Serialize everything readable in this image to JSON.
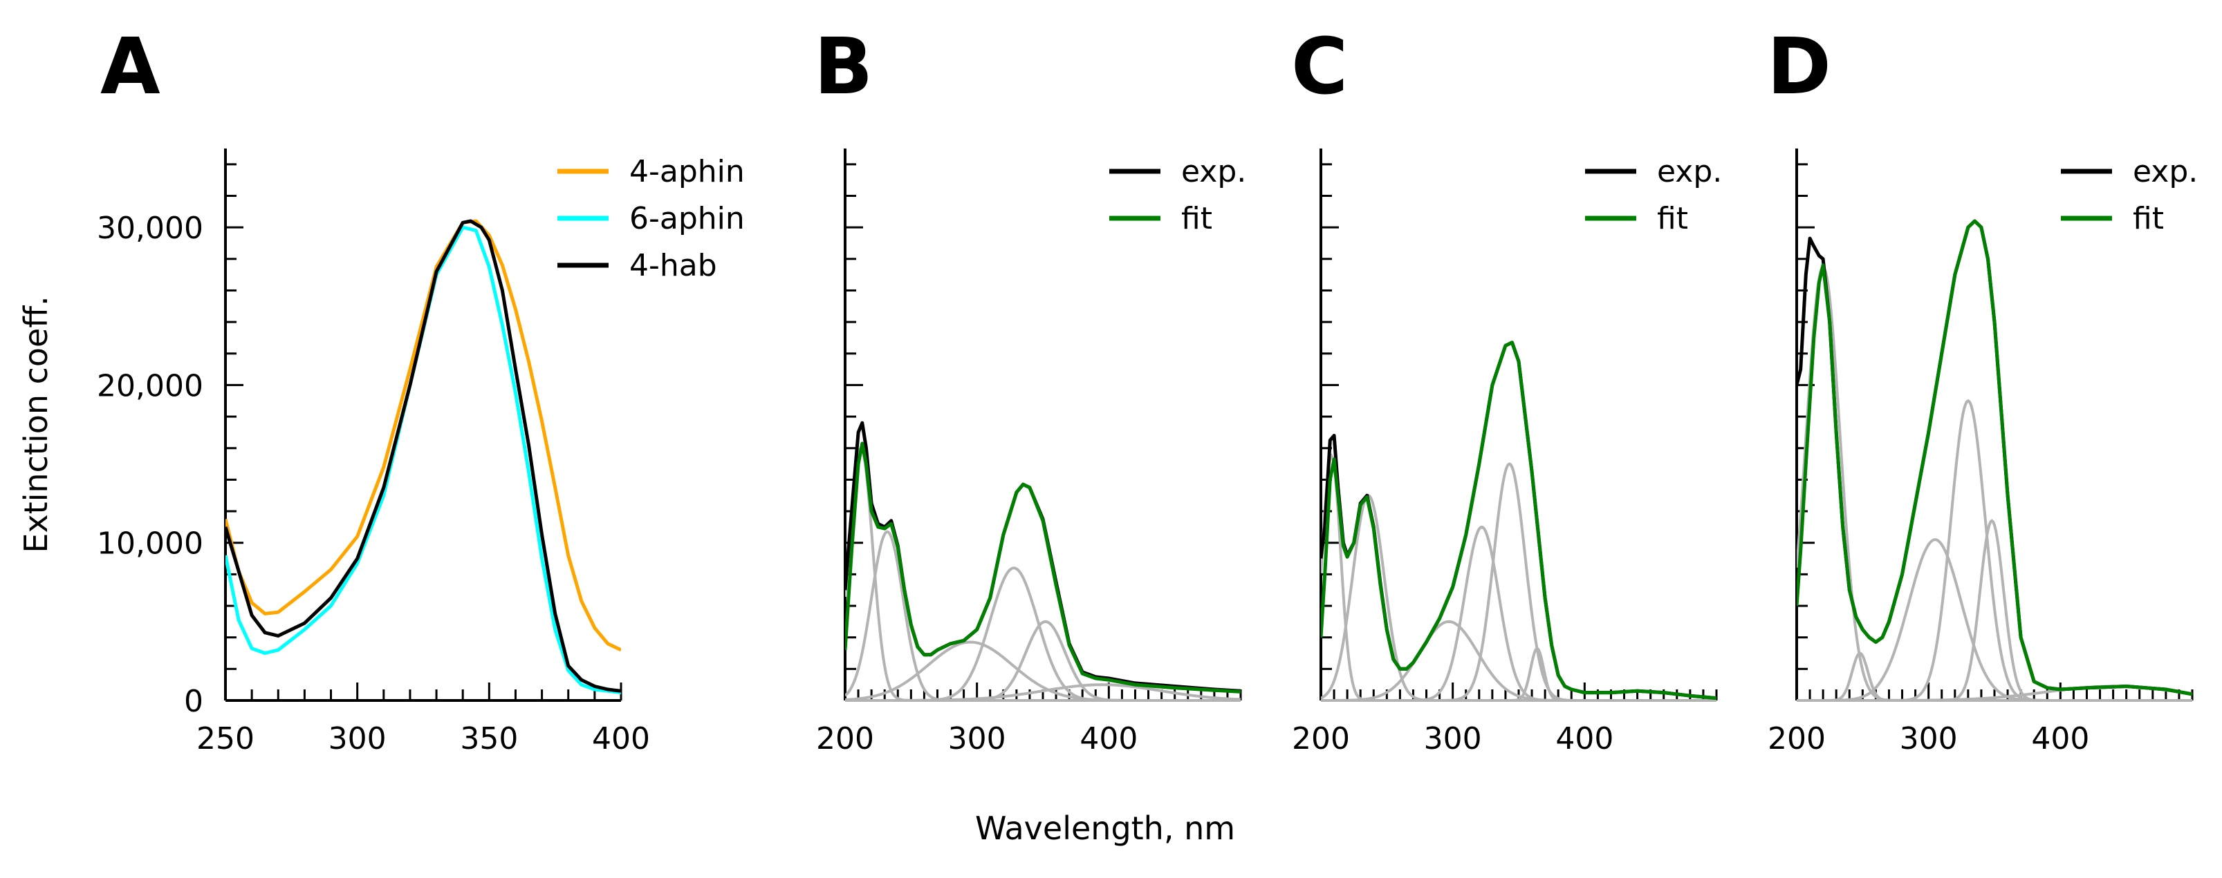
{
  "figure": {
    "shared_xlabel": "Wavelength, nm"
  },
  "chart_data": [
    {
      "panel": "A",
      "type": "line",
      "xlabel": "",
      "ylabel": "Extinction coeff.",
      "xlim": [
        250,
        400
      ],
      "ylim": [
        0,
        35000
      ],
      "xticks": [
        250,
        300,
        350,
        400
      ],
      "yticks": [
        0,
        10000,
        20000,
        30000
      ],
      "ytick_labels": [
        "0",
        "10,000",
        "20,000",
        "30,000"
      ],
      "legend": "top-right",
      "series": [
        {
          "name": "4-aphin",
          "color": "#FFA500",
          "x": [
            250,
            255,
            260,
            265,
            270,
            280,
            290,
            300,
            310,
            320,
            330,
            340,
            345,
            350,
            355,
            360,
            365,
            370,
            375,
            380,
            385,
            390,
            395,
            400
          ],
          "y": [
            11500,
            8200,
            6200,
            5500,
            5600,
            6900,
            8300,
            10400,
            14800,
            21000,
            27500,
            30300,
            30400,
            29500,
            27600,
            24800,
            21500,
            17700,
            13500,
            9200,
            6300,
            4600,
            3600,
            3200
          ]
        },
        {
          "name": "6-aphin",
          "color": "#00FFFF",
          "x": [
            250,
            255,
            260,
            265,
            270,
            280,
            290,
            300,
            310,
            320,
            330,
            340,
            345,
            350,
            355,
            360,
            365,
            370,
            375,
            380,
            385,
            390,
            395,
            400
          ],
          "y": [
            9200,
            5100,
            3300,
            3000,
            3200,
            4500,
            6000,
            8700,
            13000,
            20000,
            27000,
            30000,
            29800,
            27500,
            23800,
            19500,
            14500,
            9000,
            4500,
            1900,
            1000,
            700,
            600,
            500
          ]
        },
        {
          "name": "4-hab",
          "color": "#000000",
          "x": [
            250,
            255,
            260,
            265,
            270,
            280,
            290,
            300,
            310,
            320,
            330,
            340,
            343,
            347,
            350,
            355,
            360,
            365,
            370,
            375,
            380,
            385,
            390,
            395,
            400
          ],
          "y": [
            11000,
            8200,
            5400,
            4300,
            4100,
            4900,
            6500,
            9000,
            13500,
            20000,
            27200,
            30300,
            30400,
            30000,
            29200,
            26000,
            21000,
            16200,
            10500,
            5500,
            2200,
            1300,
            900,
            700,
            600
          ]
        }
      ]
    },
    {
      "panel": "B",
      "type": "line",
      "xlim": [
        200,
        500
      ],
      "ylim": [
        0,
        35000
      ],
      "xticks": [
        200,
        300,
        400
      ],
      "legend": "top-right",
      "series": [
        {
          "name": "exp.",
          "color": "#000000",
          "x": [
            200,
            205,
            210,
            213,
            216,
            220,
            225,
            230,
            235,
            240,
            245,
            250,
            255,
            260,
            265,
            270,
            280,
            290,
            300,
            310,
            320,
            330,
            335,
            340,
            350,
            360,
            370,
            380,
            390,
            400,
            420,
            450,
            480,
            500
          ],
          "y": [
            7000,
            12000,
            17000,
            17600,
            16000,
            12500,
            11200,
            11000,
            11400,
            9800,
            7000,
            4800,
            3400,
            2900,
            2900,
            3200,
            3600,
            3800,
            4500,
            6500,
            10500,
            13200,
            13700,
            13500,
            11500,
            7500,
            3600,
            1800,
            1500,
            1400,
            1100,
            900,
            700,
            600
          ]
        },
        {
          "name": "fit",
          "color": "#008000",
          "x": [
            200,
            205,
            210,
            213,
            216,
            220,
            225,
            230,
            235,
            240,
            245,
            250,
            255,
            260,
            265,
            270,
            280,
            290,
            300,
            310,
            320,
            330,
            335,
            340,
            350,
            360,
            370,
            380,
            390,
            400,
            420,
            450,
            480,
            500
          ],
          "y": [
            3200,
            9500,
            15000,
            16300,
            15000,
            12000,
            11000,
            10900,
            11200,
            9700,
            7000,
            4800,
            3400,
            2900,
            2900,
            3200,
            3600,
            3800,
            4500,
            6500,
            10500,
            13200,
            13700,
            13500,
            11400,
            7300,
            3500,
            1700,
            1400,
            1300,
            1000,
            800,
            650,
            550
          ]
        }
      ],
      "components": [
        {
          "center": 212,
          "width": 9,
          "amplitude": 16000
        },
        {
          "center": 232,
          "width": 12,
          "amplitude": 10700
        },
        {
          "center": 295,
          "width": 32,
          "amplitude": 3700
        },
        {
          "center": 328,
          "width": 18,
          "amplitude": 8400
        },
        {
          "center": 352,
          "width": 15,
          "amplitude": 5000
        },
        {
          "center": 395,
          "width": 45,
          "amplitude": 1000
        }
      ]
    },
    {
      "panel": "C",
      "type": "line",
      "xlim": [
        200,
        500
      ],
      "ylim": [
        0,
        35000
      ],
      "xticks": [
        200,
        300,
        400
      ],
      "legend": "top-right",
      "series": [
        {
          "name": "exp.",
          "color": "#000000",
          "x": [
            200,
            203,
            207,
            210,
            213,
            217,
            220,
            225,
            230,
            235,
            240,
            245,
            250,
            255,
            260,
            265,
            270,
            280,
            290,
            300,
            310,
            320,
            330,
            340,
            345,
            350,
            360,
            370,
            375,
            380,
            385,
            390,
            400,
            420,
            440,
            460,
            480,
            500
          ],
          "y": [
            9000,
            11000,
            16500,
            16800,
            13500,
            10000,
            9200,
            10000,
            12500,
            13000,
            11000,
            7500,
            4500,
            2600,
            2000,
            2000,
            2400,
            3700,
            5200,
            7200,
            10500,
            15000,
            20000,
            22500,
            22700,
            21500,
            14500,
            6500,
            3500,
            1600,
            900,
            700,
            500,
            500,
            600,
            500,
            300,
            150
          ]
        },
        {
          "name": "fit",
          "color": "#008000",
          "x": [
            200,
            203,
            207,
            210,
            213,
            217,
            220,
            225,
            230,
            235,
            240,
            245,
            250,
            255,
            260,
            265,
            270,
            280,
            290,
            300,
            310,
            320,
            330,
            340,
            345,
            350,
            360,
            370,
            375,
            380,
            385,
            390,
            400,
            420,
            440,
            460,
            480,
            500
          ],
          "y": [
            4000,
            8000,
            14000,
            15300,
            13000,
            9800,
            9100,
            10000,
            12400,
            12900,
            10900,
            7400,
            4500,
            2600,
            2000,
            2000,
            2400,
            3700,
            5200,
            7200,
            10500,
            15000,
            20000,
            22500,
            22700,
            21500,
            14500,
            6500,
            3500,
            1600,
            900,
            700,
            500,
            500,
            600,
            500,
            300,
            150
          ]
        }
      ],
      "components": [
        {
          "center": 208,
          "width": 7,
          "amplitude": 15500
        },
        {
          "center": 236,
          "width": 12,
          "amplitude": 13000
        },
        {
          "center": 297,
          "width": 22,
          "amplitude": 5000
        },
        {
          "center": 322,
          "width": 13,
          "amplitude": 11000
        },
        {
          "center": 343,
          "width": 12,
          "amplitude": 15000
        },
        {
          "center": 364,
          "width": 5,
          "amplitude": 3300
        }
      ]
    },
    {
      "panel": "D",
      "type": "line",
      "xlim": [
        200,
        500
      ],
      "ylim": [
        0,
        35000
      ],
      "xticks": [
        200,
        300,
        400
      ],
      "legend": "top-right",
      "series": [
        {
          "name": "exp.",
          "color": "#000000",
          "x": [
            200,
            203,
            207,
            210,
            213,
            217,
            220,
            225,
            230,
            235,
            240,
            245,
            250,
            255,
            260,
            265,
            270,
            280,
            290,
            300,
            310,
            320,
            330,
            335,
            340,
            345,
            350,
            360,
            370,
            380,
            390,
            400,
            420,
            450,
            480,
            500
          ],
          "y": [
            20000,
            21000,
            27000,
            29300,
            28800,
            28200,
            28000,
            24000,
            17000,
            11000,
            7000,
            5300,
            4500,
            4000,
            3700,
            4000,
            5000,
            8000,
            12500,
            17000,
            22000,
            27000,
            30000,
            30400,
            30000,
            28000,
            24000,
            13000,
            4000,
            1200,
            800,
            700,
            800,
            900,
            700,
            400
          ]
        },
        {
          "name": "fit",
          "color": "#008000",
          "x": [
            200,
            203,
            207,
            210,
            213,
            217,
            220,
            225,
            230,
            235,
            240,
            245,
            250,
            255,
            260,
            265,
            270,
            280,
            290,
            300,
            310,
            320,
            330,
            335,
            340,
            345,
            350,
            360,
            370,
            380,
            390,
            400,
            420,
            450,
            480,
            500
          ],
          "y": [
            6000,
            9500,
            15000,
            19000,
            23000,
            26500,
            27600,
            24000,
            17000,
            11000,
            7000,
            5300,
            4500,
            4000,
            3700,
            4000,
            5000,
            8000,
            12500,
            17000,
            22000,
            27000,
            30000,
            30400,
            30000,
            28000,
            24000,
            13000,
            4000,
            1200,
            800,
            700,
            800,
            900,
            700,
            400
          ]
        }
      ],
      "components": [
        {
          "center": 220,
          "width": 13,
          "amplitude": 27500
        },
        {
          "center": 248,
          "width": 6,
          "amplitude": 3000
        },
        {
          "center": 305,
          "width": 20,
          "amplitude": 10200
        },
        {
          "center": 330,
          "width": 13,
          "amplitude": 19000
        },
        {
          "center": 348,
          "width": 9,
          "amplitude": 11400
        },
        {
          "center": 440,
          "width": 50,
          "amplitude": 900
        }
      ]
    }
  ]
}
